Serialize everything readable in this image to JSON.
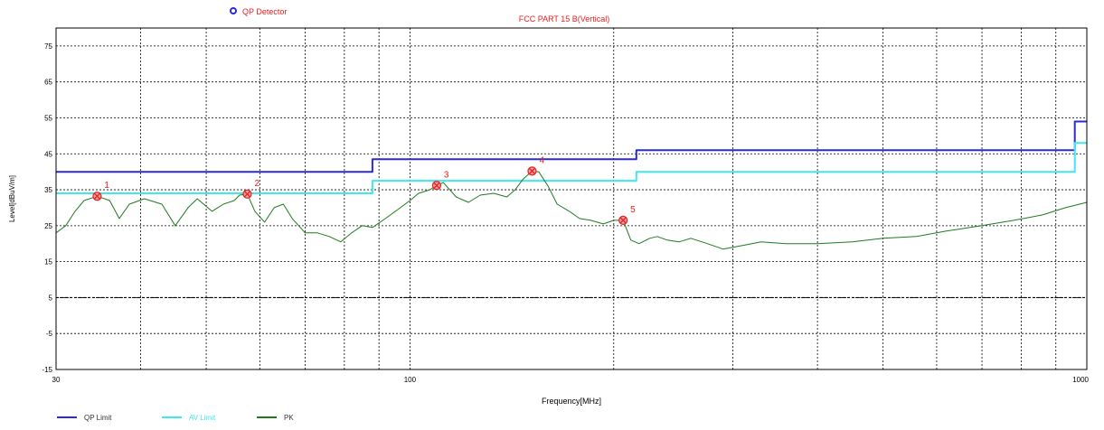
{
  "header": {
    "detector_label": "QP Detector",
    "chart_title": "FCC PART 15 B(Vertical)"
  },
  "chart_data": {
    "type": "line",
    "title": "FCC PART 15 B(Vertical)",
    "xlabel": "Frequency[MHz]",
    "ylabel": "Level[dBuV/m]",
    "x_scale": "log",
    "xlim": [
      30,
      1000
    ],
    "ylim": [
      -15,
      80
    ],
    "x_ticks": [
      30,
      100,
      1000
    ],
    "x_minor_gridlines": [
      40,
      50,
      60,
      70,
      80,
      90,
      200,
      300,
      400,
      500,
      600,
      700,
      800,
      900
    ],
    "y_ticks": [
      -15,
      -5,
      5,
      15,
      25,
      35,
      45,
      55,
      65,
      75
    ],
    "grid": true,
    "legend_position": "bottom-left",
    "colors": {
      "qp_limit": "#2a2ad8",
      "av_limit": "#3ee8f0",
      "pk": "#1f7a1f",
      "marker": "#e82020",
      "title": "#e82020",
      "reference_line": "#000000"
    },
    "reference_line_y": 5,
    "series": [
      {
        "name": "QP Limit",
        "step": true,
        "points": [
          [
            30,
            40
          ],
          [
            88,
            40
          ],
          [
            88,
            43.5
          ],
          [
            216,
            43.5
          ],
          [
            216,
            46
          ],
          [
            960,
            46
          ],
          [
            960,
            54
          ],
          [
            1000,
            54
          ]
        ]
      },
      {
        "name": "AV Limit",
        "step": true,
        "points": [
          [
            30,
            34
          ],
          [
            88,
            34
          ],
          [
            88,
            37.5
          ],
          [
            216,
            37.5
          ],
          [
            216,
            40
          ],
          [
            960,
            40
          ],
          [
            960,
            48
          ],
          [
            1000,
            48
          ]
        ]
      },
      {
        "name": "PK",
        "points": [
          [
            30,
            23
          ],
          [
            31,
            25
          ],
          [
            32,
            29
          ],
          [
            33,
            32
          ],
          [
            34.5,
            33.2
          ],
          [
            36,
            32
          ],
          [
            37.2,
            27
          ],
          [
            38.5,
            31
          ],
          [
            40.5,
            32.5
          ],
          [
            43,
            31
          ],
          [
            45,
            25
          ],
          [
            47,
            30
          ],
          [
            48.5,
            32.5
          ],
          [
            51,
            29
          ],
          [
            53,
            31
          ],
          [
            55,
            32
          ],
          [
            56,
            33.5
          ],
          [
            57.5,
            33.8
          ],
          [
            59,
            29
          ],
          [
            61,
            26
          ],
          [
            63,
            30
          ],
          [
            65,
            31
          ],
          [
            67,
            27
          ],
          [
            70,
            23
          ],
          [
            73,
            23
          ],
          [
            76,
            22
          ],
          [
            79,
            20.5
          ],
          [
            82,
            23
          ],
          [
            85,
            25
          ],
          [
            88,
            24.5
          ],
          [
            92,
            27
          ],
          [
            96,
            29.5
          ],
          [
            100,
            32
          ],
          [
            103,
            34
          ],
          [
            107,
            35
          ],
          [
            109.5,
            36.2
          ],
          [
            112,
            37
          ],
          [
            117,
            33
          ],
          [
            122,
            31.5
          ],
          [
            127,
            33.5
          ],
          [
            133,
            34
          ],
          [
            139,
            33
          ],
          [
            143,
            35
          ],
          [
            147,
            38
          ],
          [
            151.5,
            40.2
          ],
          [
            155,
            40
          ],
          [
            160,
            36
          ],
          [
            165,
            31
          ],
          [
            172,
            29
          ],
          [
            178,
            27
          ],
          [
            185,
            26.5
          ],
          [
            193,
            25.5
          ],
          [
            200,
            26.5
          ],
          [
            206.5,
            26.5
          ],
          [
            212,
            21
          ],
          [
            218,
            20
          ],
          [
            226,
            21.5
          ],
          [
            232,
            22
          ],
          [
            240,
            21
          ],
          [
            250,
            20.5
          ],
          [
            260,
            21.5
          ],
          [
            275,
            20
          ],
          [
            290,
            18.5
          ],
          [
            310,
            19.5
          ],
          [
            330,
            20.5
          ],
          [
            360,
            20
          ],
          [
            400,
            20
          ],
          [
            450,
            20.5
          ],
          [
            500,
            21.5
          ],
          [
            560,
            22
          ],
          [
            620,
            23.5
          ],
          [
            700,
            25
          ],
          [
            780,
            26.5
          ],
          [
            860,
            28
          ],
          [
            930,
            30
          ],
          [
            1000,
            31.5
          ]
        ]
      }
    ],
    "markers": [
      {
        "label": "1",
        "x": 34.5,
        "y": 33.2
      },
      {
        "label": "2",
        "x": 57.5,
        "y": 33.8
      },
      {
        "label": "3",
        "x": 109.5,
        "y": 36.2
      },
      {
        "label": "4",
        "x": 151.5,
        "y": 40.2
      },
      {
        "label": "5",
        "x": 206.5,
        "y": 26.5
      }
    ]
  },
  "legend": {
    "items": [
      {
        "label": "QP Limit",
        "color": "#2a2ad8"
      },
      {
        "label": "AV Limit",
        "color": "#3ee8f0"
      },
      {
        "label": "PK",
        "color": "#1f7a1f"
      }
    ]
  }
}
